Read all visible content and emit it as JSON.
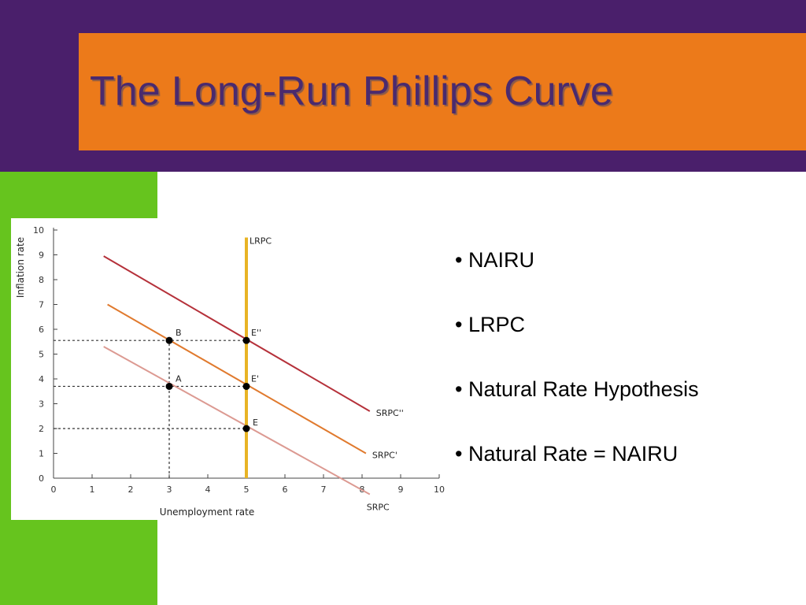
{
  "slide": {
    "title": "The Long-Run Phillips Curve",
    "bullets": [
      "• NAIRU",
      "• LRPC",
      "• Natural Rate Hypothesis",
      "• Natural Rate = NAIRU"
    ]
  },
  "colors": {
    "top_band": "#4a1f6b",
    "title_box": "#ec7a1a",
    "green_strip": "#66c41e"
  },
  "chart_data": {
    "type": "line",
    "xlabel": "Unemployment rate",
    "ylabel": "Inflation rate",
    "xlim": [
      0,
      10
    ],
    "ylim": [
      0,
      10
    ],
    "xticks": [
      0,
      1,
      2,
      3,
      4,
      5,
      6,
      7,
      8,
      9,
      10
    ],
    "yticks": [
      0,
      1,
      2,
      3,
      4,
      5,
      6,
      7,
      8,
      9,
      10
    ],
    "series": [
      {
        "name": "SRPC''",
        "color": "#b5313a",
        "x": [
          1.3,
          8.2
        ],
        "y": [
          8.95,
          2.7
        ]
      },
      {
        "name": "SRPC'",
        "color": "#e07a2e",
        "x": [
          1.4,
          8.1
        ],
        "y": [
          7.0,
          1.0
        ]
      },
      {
        "name": "SRPC",
        "color": "#dc9a92",
        "x": [
          1.3,
          8.2
        ],
        "y": [
          5.3,
          -0.65
        ]
      },
      {
        "name": "LRPC",
        "color": "#e8b425",
        "x": [
          5,
          5
        ],
        "y": [
          0,
          9.7
        ]
      }
    ],
    "points": [
      {
        "label": "B",
        "x": 3,
        "y": 5.55
      },
      {
        "label": "E''",
        "x": 5,
        "y": 5.55
      },
      {
        "label": "A",
        "x": 3,
        "y": 3.7
      },
      {
        "label": "E'",
        "x": 5,
        "y": 3.7
      },
      {
        "label": "E",
        "x": 5,
        "y": 2.0
      }
    ],
    "guides": [
      {
        "x1": 0,
        "y1": 5.55,
        "x2": 5,
        "y2": 5.55
      },
      {
        "x1": 0,
        "y1": 3.7,
        "x2": 5,
        "y2": 3.7
      },
      {
        "x1": 0,
        "y1": 2.0,
        "x2": 5,
        "y2": 2.0
      },
      {
        "x1": 3,
        "y1": 0,
        "x2": 3,
        "y2": 5.55
      }
    ]
  }
}
